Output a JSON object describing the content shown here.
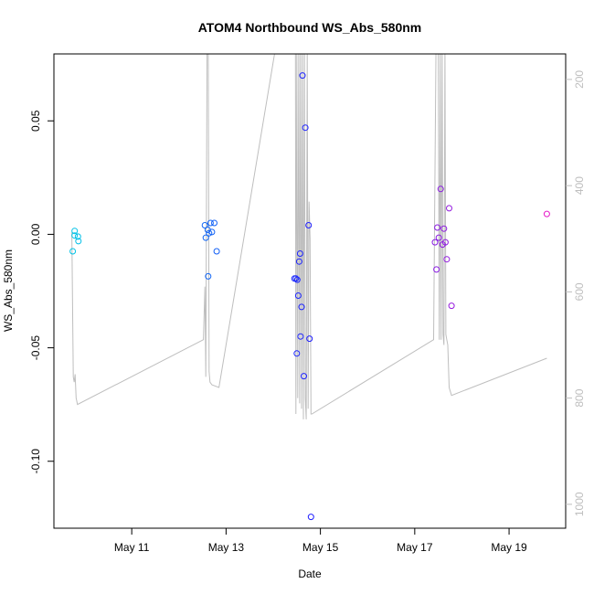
{
  "chart_data": {
    "type": "scatter",
    "title": "ATOM4 Northbound WS_Abs_580nm",
    "xlabel": "Date",
    "ylabel": "WS_Abs_580nm",
    "x_unit": "days (May 2021)",
    "xlim": [
      9.35,
      20.2
    ],
    "ylim": [
      -0.1295,
      0.0795
    ],
    "x_ticks": [
      {
        "value": 11,
        "label": "May 11"
      },
      {
        "value": 13,
        "label": "May 13"
      },
      {
        "value": 15,
        "label": "May 15"
      },
      {
        "value": 17,
        "label": "May 17"
      },
      {
        "value": 19,
        "label": "May 19"
      }
    ],
    "y_ticks": [
      {
        "value": 0.05,
        "label": "0.05"
      },
      {
        "value": 0.0,
        "label": "0.00"
      },
      {
        "value": -0.05,
        "label": "-0.05"
      },
      {
        "value": -0.1,
        "label": "-0.10"
      }
    ],
    "secondary_axis": {
      "ylim": [
        1045,
        152
      ],
      "ticks": [
        {
          "value": 200,
          "label": "200"
        },
        {
          "value": 400,
          "label": "400"
        },
        {
          "value": 600,
          "label": "600"
        },
        {
          "value": 800,
          "label": "800"
        },
        {
          "value": 1000,
          "label": "1000"
        }
      ],
      "color": "#bebebe"
    },
    "background_series": {
      "color": "#bebebe",
      "points": [
        [
          9.73,
          488
        ],
        [
          9.76,
          760
        ],
        [
          9.78,
          770
        ],
        [
          9.8,
          755
        ],
        [
          9.82,
          800
        ],
        [
          9.85,
          812
        ],
        [
          12.52,
          690
        ],
        [
          12.55,
          590
        ],
        [
          12.57,
          760
        ],
        [
          12.6,
          80
        ],
        [
          12.62,
          80
        ],
        [
          12.64,
          750
        ],
        [
          12.66,
          770
        ],
        [
          12.7,
          775
        ],
        [
          12.85,
          780
        ],
        [
          14.05,
          140
        ],
        [
          14.35,
          140
        ],
        [
          14.47,
          140
        ],
        [
          14.48,
          830
        ],
        [
          14.5,
          140
        ],
        [
          14.52,
          800
        ],
        [
          14.54,
          140
        ],
        [
          14.56,
          810
        ],
        [
          14.58,
          140
        ],
        [
          14.6,
          820
        ],
        [
          14.62,
          140
        ],
        [
          14.64,
          840
        ],
        [
          14.66,
          140
        ],
        [
          14.68,
          800
        ],
        [
          14.7,
          840
        ],
        [
          14.72,
          150
        ],
        [
          14.74,
          820
        ],
        [
          14.76,
          430
        ],
        [
          14.78,
          500
        ],
        [
          14.8,
          830
        ],
        [
          14.82,
          830
        ],
        [
          17.4,
          690
        ],
        [
          17.45,
          140
        ],
        [
          17.5,
          140
        ],
        [
          17.52,
          690
        ],
        [
          17.54,
          140
        ],
        [
          17.56,
          690
        ],
        [
          17.58,
          140
        ],
        [
          17.6,
          680
        ],
        [
          17.62,
          700
        ],
        [
          17.64,
          140
        ],
        [
          17.66,
          680
        ],
        [
          17.68,
          690
        ],
        [
          17.7,
          700
        ],
        [
          17.73,
          780
        ],
        [
          17.78,
          795
        ],
        [
          19.8,
          725
        ]
      ]
    },
    "color_scale": {
      "from": "#00c3e6",
      "mid": "#1e1eff",
      "to": "#e619c8"
    },
    "points": [
      {
        "x": 9.75,
        "y": -0.0075
      },
      {
        "x": 9.79,
        "y": 0.0015
      },
      {
        "x": 9.79,
        "y": -0.0005
      },
      {
        "x": 9.86,
        "y": -0.001
      },
      {
        "x": 9.87,
        "y": -0.003
      },
      {
        "x": 12.55,
        "y": 0.004
      },
      {
        "x": 12.57,
        "y": -0.0015
      },
      {
        "x": 12.61,
        "y": 0.002
      },
      {
        "x": 12.62,
        "y": -0.0185
      },
      {
        "x": 12.64,
        "y": 0.0005
      },
      {
        "x": 12.67,
        "y": 0.005
      },
      {
        "x": 12.7,
        "y": 0.001
      },
      {
        "x": 12.75,
        "y": 0.005
      },
      {
        "x": 12.8,
        "y": -0.0075
      },
      {
        "x": 14.45,
        "y": -0.0195
      },
      {
        "x": 14.48,
        "y": -0.0195
      },
      {
        "x": 14.5,
        "y": -0.0525
      },
      {
        "x": 14.51,
        "y": -0.02
      },
      {
        "x": 14.53,
        "y": -0.027
      },
      {
        "x": 14.55,
        "y": -0.012
      },
      {
        "x": 14.57,
        "y": -0.0085
      },
      {
        "x": 14.58,
        "y": -0.045
      },
      {
        "x": 14.6,
        "y": -0.032
      },
      {
        "x": 14.62,
        "y": 0.07
      },
      {
        "x": 14.65,
        "y": -0.0625
      },
      {
        "x": 14.68,
        "y": 0.047
      },
      {
        "x": 14.75,
        "y": 0.004
      },
      {
        "x": 14.77,
        "y": -0.046
      },
      {
        "x": 14.8,
        "y": -0.1245
      },
      {
        "x": 17.43,
        "y": -0.0035
      },
      {
        "x": 17.46,
        "y": -0.0155
      },
      {
        "x": 17.48,
        "y": 0.003
      },
      {
        "x": 17.51,
        "y": -0.0015
      },
      {
        "x": 17.55,
        "y": 0.02
      },
      {
        "x": 17.59,
        "y": -0.0045
      },
      {
        "x": 17.62,
        "y": 0.0025
      },
      {
        "x": 17.65,
        "y": -0.0035
      },
      {
        "x": 17.68,
        "y": -0.011
      },
      {
        "x": 17.73,
        "y": 0.0115
      },
      {
        "x": 17.78,
        "y": -0.0315
      },
      {
        "x": 19.8,
        "y": 0.009
      }
    ]
  }
}
